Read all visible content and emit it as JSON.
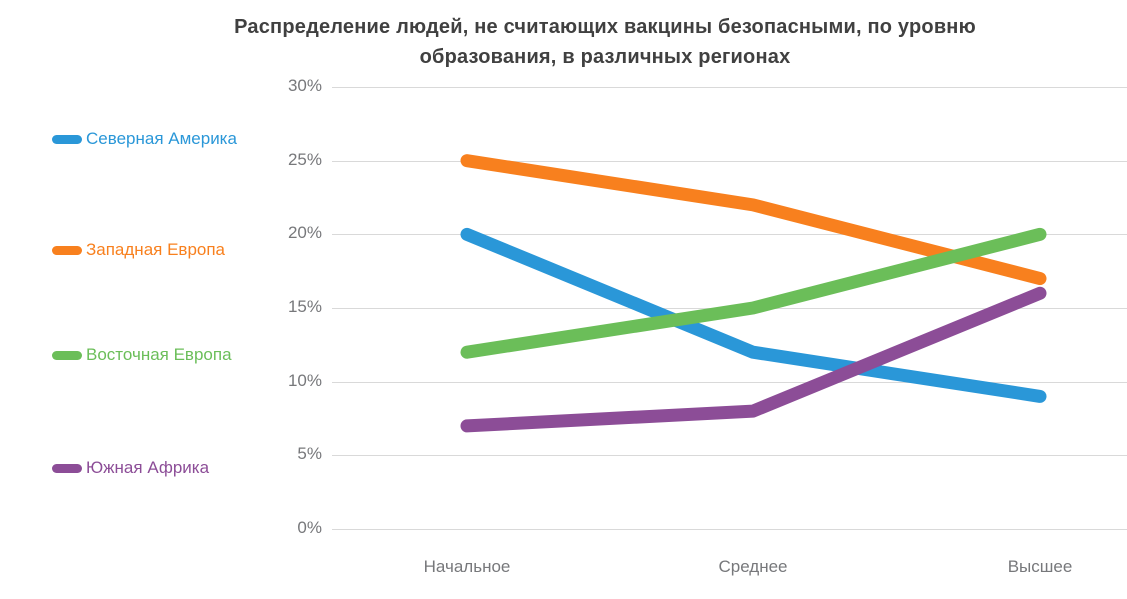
{
  "chart_data": {
    "type": "line",
    "title": "Распределение людей, не считающих вакцины безопасными, по уровню образования, в различных регионах",
    "title_color": "#404040",
    "categories": [
      "Начальное",
      "Среднее",
      "Высшее"
    ],
    "series": [
      {
        "name": "Северная Америка",
        "color": "#2A97D8",
        "values": [
          20,
          12,
          9
        ]
      },
      {
        "name": "Западная Европа",
        "color": "#F8801E",
        "values": [
          25,
          22,
          17
        ]
      },
      {
        "name": "Восточная Европа",
        "color": "#6BBE59",
        "values": [
          12,
          15,
          20
        ]
      },
      {
        "name": "Южная Африка",
        "color": "#8C4D97",
        "values": [
          7,
          8,
          16
        ]
      }
    ],
    "y_axis": {
      "min": 0,
      "max": 30,
      "step": 5,
      "tick_labels": [
        "0%",
        "5%",
        "10%",
        "15%",
        "20%",
        "25%",
        "30%"
      ],
      "label_color": "#77787B"
    },
    "x_axis": {
      "label_color": "#77787B"
    },
    "grid": true,
    "gridline_color": "#D9D9D9",
    "legend_position": "left"
  }
}
